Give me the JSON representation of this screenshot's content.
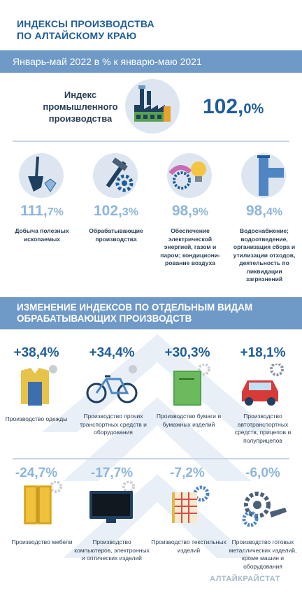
{
  "header": {
    "title_line1": "ИНДЕКСЫ ПРОИЗВОДСТВА",
    "title_line2": "ПО АЛТАЙСКОМУ КРАЮ"
  },
  "period": "Январь-май 2022  в % к январю-маю 2021",
  "main_index": {
    "label": "Индекс промышленного производства",
    "value_int": "102,",
    "value_dec": "0%"
  },
  "sectors": [
    {
      "value_int": "111,",
      "value_dec": "7%",
      "label": "Добыча полезных ископаемых",
      "icon": "mining-icon"
    },
    {
      "value_int": "102,",
      "value_dec": "3%",
      "label": "Обрабатывающие производства",
      "icon": "tools-gear-icon"
    },
    {
      "value_int": "98,",
      "value_dec": "9%",
      "label": "Обеспечение электрической энергией, газом и паром; кондициони-рование воздуха",
      "icon": "energy-bulb-icon"
    },
    {
      "value_int": "98,",
      "value_dec": "4%",
      "label": "Водоснабжение; водоотведение, организация сбора и утилизации отходов, деятельность по ликвидации загрязнений",
      "icon": "water-pipe-icon"
    }
  ],
  "section_title_line1": "ИЗМЕНЕНИЕ ИНДЕКСОВ ПО ОТДЕЛЬНЫМ ВИДАМ",
  "section_title_line2": "ОБРАБАТЫВАЮЩИХ ПРОИЗВОДСТВ",
  "increases": [
    {
      "value": "+38,4%",
      "label": "Производство одежды",
      "icon": "clothing-icon"
    },
    {
      "value": "+34,4%",
      "label": "Производство прочих транспортных средств и оборудования",
      "icon": "bicycle-icon"
    },
    {
      "value": "+30,3%",
      "label": "Производство бумаги и бумажных изделий",
      "icon": "paper-book-icon"
    },
    {
      "value": "+18,1%",
      "label": "Производство автотранспортных средств, прицепов и полуприцепов",
      "icon": "car-icon"
    }
  ],
  "decreases": [
    {
      "value": "-24,7%",
      "label": "Производство мебели",
      "icon": "wardrobe-icon"
    },
    {
      "value": "-17,7%",
      "label": "Производство компьютеров, электронных и оптических изделий",
      "icon": "monitor-icon"
    },
    {
      "value": "-7,2%",
      "label": "Производство текстильных изделий",
      "icon": "textile-icon"
    },
    {
      "value": "-6,0%",
      "label": "Производство готовых металлических изделий, кроме машин и оборудования",
      "icon": "metal-gears-icon"
    }
  ],
  "footer": "АЛТАЙКРАЙСТАТ",
  "colors": {
    "accent": "#1f5d9a",
    "light_blue": "#8fb5dd",
    "band": "#6f99c6"
  }
}
